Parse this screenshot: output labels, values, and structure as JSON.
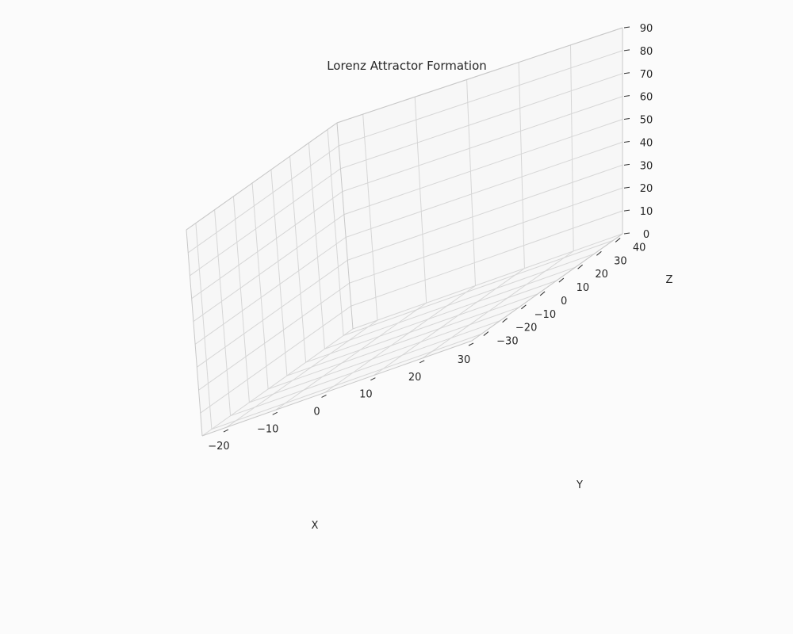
{
  "chart_data": {
    "type": "line",
    "title": "Lorenz Attractor Formation",
    "xlabel": "X",
    "ylabel": "Y",
    "zlabel": "Z",
    "xlim": [
      -25,
      30
    ],
    "ylim": [
      -35,
      45
    ],
    "zlim": [
      0,
      90
    ],
    "x_ticks": [
      -20,
      -10,
      0,
      10,
      20,
      30
    ],
    "y_ticks": [
      -30,
      -20,
      -10,
      0,
      10,
      20,
      30,
      40
    ],
    "z_ticks": [
      0,
      10,
      20,
      30,
      40,
      50,
      60,
      70,
      80,
      90
    ],
    "x_tick_labels": [
      "−20",
      "−10",
      "0",
      "10",
      "20",
      "30"
    ],
    "y_tick_labels": [
      "−30",
      "−20",
      "−10",
      "0",
      "10",
      "20",
      "30",
      "40"
    ],
    "z_tick_labels": [
      "0",
      "10",
      "20",
      "30",
      "40",
      "50",
      "60",
      "70",
      "80",
      "90"
    ],
    "grid": true,
    "series": []
  }
}
